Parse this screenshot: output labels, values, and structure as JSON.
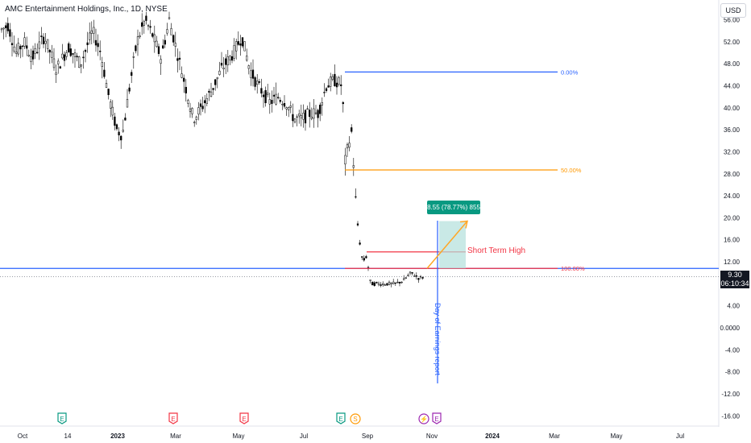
{
  "header": {
    "title": "AMC Entertainment Holdings, Inc., 1D, NYSE",
    "currency_button": "USD"
  },
  "price_tag": {
    "price": "9.30",
    "countdown": "06:10:34"
  },
  "annotations": {
    "short_term_high": "Short Term High",
    "earnings_label": "Day of Earnings report",
    "measure_label": "8.55 (78.77%) 855"
  },
  "colors": {
    "fib_0": "#2962ff",
    "fib_50": "#ff9800",
    "fib_100": "#f23645",
    "horizontal": "#2962ff",
    "short_term_high": "#f23645",
    "arrow": "#ffa726",
    "measure_box": "#089981",
    "earnings_line": "#2962ff"
  },
  "chart_data": {
    "type": "candlestick",
    "y_axis": {
      "range": [
        -17,
        60
      ],
      "ticks": [
        "-16.00",
        "-12.00",
        "-8.00",
        "-4.00",
        "0.0000",
        "4.00",
        "8.00",
        "12.00",
        "16.00",
        "20.00",
        "24.00",
        "28.00",
        "32.00",
        "36.00",
        "40.00",
        "44.00",
        "48.00",
        "52.00",
        "56.00"
      ]
    },
    "x_axis": {
      "ticks": [
        "Oct",
        "14",
        "2023",
        "Mar",
        "May",
        "Jul",
        "Sep",
        "Nov",
        "2024",
        "Mar",
        "May",
        "Jul"
      ]
    },
    "price_path": [
      [
        0,
        54
      ],
      [
        10,
        55
      ],
      [
        20,
        50
      ],
      [
        30,
        52
      ],
      [
        40,
        49
      ],
      [
        55,
        53
      ],
      [
        70,
        47
      ],
      [
        85,
        51
      ],
      [
        100,
        48
      ],
      [
        115,
        54
      ],
      [
        125,
        50
      ],
      [
        135,
        42
      ],
      [
        145,
        36
      ],
      [
        152,
        35
      ],
      [
        160,
        43
      ],
      [
        170,
        52
      ],
      [
        180,
        56
      ],
      [
        190,
        53
      ],
      [
        200,
        49
      ],
      [
        210,
        56
      ],
      [
        220,
        50
      ],
      [
        230,
        44
      ],
      [
        240,
        38
      ],
      [
        250,
        40
      ],
      [
        262,
        43
      ],
      [
        275,
        47
      ],
      [
        290,
        50
      ],
      [
        300,
        53
      ],
      [
        310,
        47
      ],
      [
        320,
        44
      ],
      [
        335,
        41
      ],
      [
        345,
        42
      ],
      [
        355,
        41
      ],
      [
        365,
        38
      ],
      [
        375,
        38
      ],
      [
        385,
        39
      ],
      [
        395,
        39
      ],
      [
        405,
        44
      ],
      [
        415,
        45
      ],
      [
        425,
        44
      ],
      [
        428,
        30
      ],
      [
        432,
        33
      ],
      [
        437,
        36
      ],
      [
        440,
        26
      ],
      [
        443,
        20
      ],
      [
        446,
        16
      ],
      [
        450,
        12
      ],
      [
        455,
        13
      ],
      [
        460,
        8
      ],
      [
        470,
        8
      ],
      [
        480,
        8
      ],
      [
        490,
        8
      ],
      [
        500,
        8.5
      ],
      [
        510,
        10
      ],
      [
        520,
        9
      ],
      [
        527,
        9.3
      ]
    ],
    "horizontal_line": 10.8,
    "dotted_price_line": 9.3,
    "fib_levels": [
      {
        "label": "0.00%",
        "price": 46.5
      },
      {
        "label": "50.00%",
        "price": 28.7
      },
      {
        "label": "100.00%",
        "price": 10.8
      }
    ],
    "short_term_high": 13.8,
    "projection": {
      "from": [
        530,
        10.8
      ],
      "to": [
        580,
        19.4
      ]
    },
    "event_markers": [
      {
        "x": 77,
        "letter": "E",
        "color": "#089981"
      },
      {
        "x": 215,
        "letter": "E",
        "color": "#f23645"
      },
      {
        "x": 303,
        "letter": "E",
        "color": "#f23645"
      },
      {
        "x": 423,
        "letter": "E",
        "color": "#089981"
      },
      {
        "x": 441,
        "letter": "S",
        "color": "#ff9800"
      },
      {
        "x": 526,
        "letter": "⚡",
        "color": "#9c27b0"
      },
      {
        "x": 542,
        "letter": "E",
        "color": "#9c27b0"
      }
    ]
  }
}
